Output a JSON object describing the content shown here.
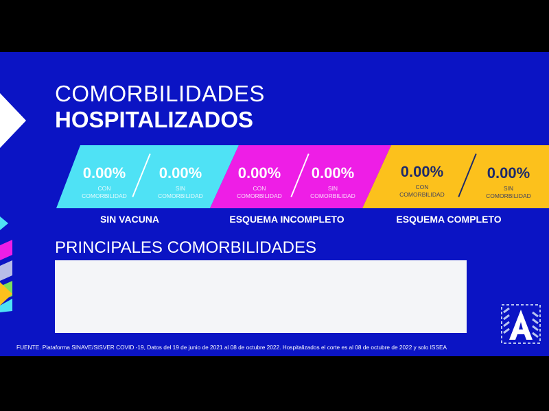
{
  "title_line1": "COMORBILIDADES",
  "title_line2": "HOSPITALIZADOS",
  "groups": [
    {
      "label": "SIN VACUNA",
      "color": "#4fe2f5",
      "con": {
        "value": "0.00%",
        "label1": "CON",
        "label2": "COMORBILIDAD"
      },
      "sin": {
        "value": "0.00%",
        "label1": "SIN",
        "label2": "COMORBILIDAD"
      }
    },
    {
      "label": "ESQUEMA INCOMPLETO",
      "color": "#ee1ee6",
      "con": {
        "value": "0.00%",
        "label1": "CON",
        "label2": "COMORBILIDAD"
      },
      "sin": {
        "value": "0.00%",
        "label1": "SIN",
        "label2": "COMORBILIDAD"
      }
    },
    {
      "label": "ESQUEMA COMPLETO",
      "color": "#fcc11c",
      "con": {
        "value": "0.00%",
        "label1": "CON",
        "label2": "COMORBILIDAD"
      },
      "sin": {
        "value": "0.00%",
        "label1": "SIN",
        "label2": "COMORBILIDAD"
      }
    }
  ],
  "section_title": "PRINCIPALES COMORBILIDADES",
  "footer": "FUENTE. Plataforma SINAVE/SISVER COVID -19, Datos del 19 de junio de 2021 al 08 de octubre 2022.  Hospitalizados el corte es al 08 de octubre de 2022 y solo ISSEA",
  "logo_text": "A",
  "background_color": "#0b14c4"
}
